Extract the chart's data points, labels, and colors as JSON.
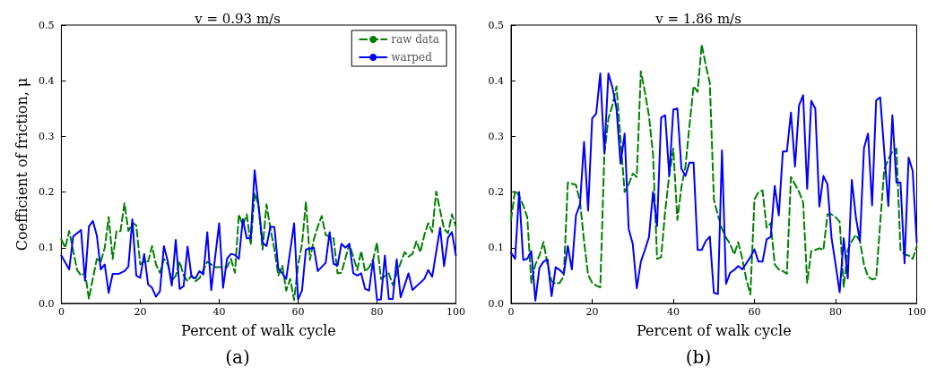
{
  "chart_data": [
    {
      "type": "line",
      "title": "v = 0.93 m/s",
      "xlabel": "Percent of walk cycle",
      "ylabel": "Coefficient of friction, μ",
      "annotations": [
        "(a)"
      ],
      "xlim": [
        0,
        100
      ],
      "ylim": [
        0,
        0.5
      ],
      "xticks": [
        0,
        20,
        40,
        60,
        80,
        100
      ],
      "yticks": [
        {
          "value": 0,
          "label": "0.0"
        },
        {
          "value": 0.1,
          "label": "0.1"
        },
        {
          "value": 0.2,
          "label": "0.2"
        },
        {
          "value": 0.3,
          "label": "0.3"
        },
        {
          "value": 0.4,
          "label": "0.4"
        },
        {
          "value": 0.5,
          "label": "0.5"
        }
      ],
      "grid": false,
      "legend": "top right",
      "marker": "none",
      "series": [
        {
          "name": "raw data",
          "color": "#008000",
          "line_style": "dashed",
          "x": [
            0,
            1,
            2,
            4,
            5,
            6,
            7,
            8,
            9,
            10,
            11,
            12,
            13,
            14,
            15,
            16,
            17,
            18,
            19,
            20,
            21,
            22,
            23,
            24,
            25,
            26,
            27,
            28,
            29,
            30,
            31,
            32,
            33,
            34,
            35,
            36,
            37,
            38,
            39,
            40,
            41,
            42,
            43,
            44,
            45,
            46,
            47,
            48,
            49,
            50,
            51,
            52,
            53,
            54,
            55,
            56,
            57,
            58,
            59,
            60,
            61,
            62,
            63,
            64,
            65,
            66,
            67,
            69,
            70,
            71,
            73,
            75,
            76,
            77,
            78,
            79,
            80,
            81,
            83,
            84,
            85,
            87,
            88,
            89,
            90,
            91,
            92,
            93,
            94,
            95,
            96,
            97,
            98,
            99,
            100
          ],
          "values": [
            0.115,
            0.1,
            0.13,
            0.06,
            0.05,
            0.055,
            0.008,
            0.045,
            0.08,
            0.075,
            0.1,
            0.155,
            0.08,
            0.13,
            0.13,
            0.18,
            0.13,
            0.145,
            0.14,
            0.07,
            0.075,
            0.075,
            0.103,
            0.07,
            0.055,
            0.08,
            0.07,
            0.04,
            0.05,
            0.075,
            0.05,
            0.04,
            0.05,
            0.04,
            0.045,
            0.06,
            0.075,
            0.07,
            0.065,
            0.065,
            0.065,
            0.065,
            0.08,
            0.055,
            0.16,
            0.14,
            0.16,
            0.105,
            0.198,
            0.176,
            0.097,
            0.178,
            0.134,
            0.097,
            0.05,
            0.068,
            0.023,
            0.044,
            0.006,
            0.068,
            0.107,
            0.183,
            0.078,
            0.115,
            0.138,
            0.157,
            0.123,
            0.117,
            0.054,
            0.055,
            0.107,
            0.06,
            0.094,
            0.057,
            0.065,
            0.078,
            0.109,
            0.044,
            0.054,
            0.033,
            0.054,
            0.092,
            0.084,
            0.089,
            0.112,
            0.092,
            0.123,
            0.144,
            0.128,
            0.201,
            0.167,
            0.134,
            0.126,
            0.16,
            0.138
          ]
        },
        {
          "name": "warped",
          "color": "#0000ff",
          "line_style": "solid",
          "x": [
            0,
            2,
            3,
            5,
            6,
            7,
            8,
            9,
            10,
            11,
            12,
            13,
            14.5,
            16,
            17,
            18,
            19,
            20,
            21,
            22,
            23,
            24,
            25,
            26,
            27,
            28,
            29,
            30,
            31,
            32,
            33,
            34,
            35,
            36,
            37,
            38,
            40,
            41,
            42,
            43,
            44,
            45,
            46,
            47,
            48,
            49,
            51,
            52,
            53,
            54,
            55,
            56,
            57,
            59,
            60,
            61,
            62,
            64,
            65,
            67,
            68,
            69,
            70,
            71,
            72,
            73,
            74,
            75,
            76,
            77,
            78,
            79,
            80,
            81,
            82,
            83,
            84,
            85,
            86,
            88,
            89,
            92,
            93,
            94,
            96,
            97,
            98,
            99,
            100
          ],
          "values": [
            0.086,
            0.061,
            0.12,
            0.132,
            0.041,
            0.138,
            0.148,
            0.122,
            0.061,
            0.07,
            0.019,
            0.053,
            0.053,
            0.058,
            0.066,
            0.151,
            0.05,
            0.046,
            0.089,
            0.034,
            0.028,
            0.012,
            0.022,
            0.103,
            0.075,
            0.032,
            0.114,
            0.026,
            0.031,
            0.102,
            0.048,
            0.045,
            0.058,
            0.052,
            0.128,
            0.024,
            0.144,
            0.028,
            0.08,
            0.089,
            0.087,
            0.08,
            0.151,
            0.117,
            0.117,
            0.239,
            0.109,
            0.103,
            0.138,
            0.137,
            0.062,
            0.054,
            0.044,
            0.144,
            0.007,
            0.023,
            0.097,
            0.1,
            0.058,
            0.073,
            0.128,
            0.071,
            0.068,
            0.107,
            0.1,
            0.107,
            0.054,
            0.05,
            0.054,
            0.026,
            0.023,
            0.078,
            0.007,
            0.007,
            0.086,
            0.008,
            0.008,
            0.079,
            0.011,
            0.054,
            0.024,
            0.044,
            0.06,
            0.048,
            0.136,
            0.067,
            0.118,
            0.128,
            0.086
          ]
        }
      ]
    },
    {
      "type": "line",
      "title": "v = 1.86 m/s",
      "xlabel": "Percent of walk cycle",
      "annotations": [
        "(b)"
      ],
      "xlim": [
        0,
        100
      ],
      "ylim": [
        0,
        0.5
      ],
      "xticks": [
        0,
        20,
        40,
        60,
        80,
        100
      ],
      "yticks": [
        {
          "value": 0,
          "label": "0.0"
        },
        {
          "value": 0.1,
          "label": "0.1"
        },
        {
          "value": 0.2,
          "label": "0.2"
        },
        {
          "value": 0.3,
          "label": "0.3"
        },
        {
          "value": 0.4,
          "label": "0.4"
        },
        {
          "value": 0.5,
          "label": "0.5"
        }
      ],
      "grid": false,
      "marker": "none",
      "series": [
        {
          "color": "#008000",
          "line_style": "dashed",
          "x": [
            0,
            1,
            2,
            3,
            4,
            5,
            6,
            7,
            8,
            9,
            10,
            11,
            12,
            13,
            14,
            16,
            17,
            18,
            19,
            20,
            21,
            22,
            23,
            24,
            25,
            26,
            27,
            28,
            29,
            30,
            31,
            32,
            33,
            34,
            35,
            36,
            37,
            38,
            39,
            40,
            41,
            42,
            43,
            44,
            45,
            46,
            47,
            48,
            49,
            50,
            51,
            52,
            53,
            54,
            55,
            56,
            57,
            58,
            59,
            60,
            61,
            62,
            63,
            64,
            65,
            66,
            67,
            68,
            69,
            70,
            71,
            72,
            73,
            74,
            75,
            76,
            77,
            78,
            79,
            80,
            81,
            82,
            83,
            84,
            85,
            86,
            87,
            88,
            89,
            90,
            91,
            92,
            93,
            94,
            95,
            96,
            97,
            98,
            99,
            100
          ],
          "values": [
            0.15,
            0.203,
            0.193,
            0.176,
            0.155,
            0.037,
            0.07,
            0.086,
            0.11,
            0.07,
            0.04,
            0.035,
            0.037,
            0.049,
            0.217,
            0.213,
            0.183,
            0.112,
            0.051,
            0.037,
            0.032,
            0.029,
            0.267,
            0.332,
            0.356,
            0.39,
            0.294,
            0.2,
            0.214,
            0.233,
            0.227,
            0.417,
            0.38,
            0.337,
            0.267,
            0.08,
            0.083,
            0.166,
            0.23,
            0.278,
            0.15,
            0.209,
            0.246,
            0.321,
            0.39,
            0.38,
            0.465,
            0.428,
            0.396,
            0.187,
            0.158,
            0.134,
            0.118,
            0.107,
            0.088,
            0.11,
            0.08,
            0.043,
            0.016,
            0.187,
            0.2,
            0.203,
            0.136,
            0.144,
            0.07,
            0.061,
            0.058,
            0.053,
            0.227,
            0.214,
            0.2,
            0.182,
            0.037,
            0.094,
            0.096,
            0.099,
            0.096,
            0.16,
            0.16,
            0.155,
            0.147,
            0.029,
            0.096,
            0.112,
            0.123,
            0.112,
            0.07,
            0.048,
            0.043,
            0.045,
            0.144,
            0.241,
            0.259,
            0.273,
            0.278,
            0.096,
            0.088,
            0.086,
            0.08,
            0.102
          ]
        },
        {
          "color": "#0000ff",
          "line_style": "solid",
          "x": [
            0,
            1,
            2,
            3,
            4,
            5,
            6,
            7,
            8,
            9,
            10,
            11,
            12,
            13,
            14,
            15,
            16,
            17,
            18,
            19,
            20,
            21,
            22,
            23,
            24,
            25,
            26,
            27,
            28,
            29,
            30,
            31,
            32,
            33,
            34,
            35,
            36,
            37,
            38,
            39,
            40,
            41,
            42,
            43,
            44,
            45,
            46,
            47,
            48,
            49,
            50,
            51,
            52,
            53,
            54,
            55,
            56,
            57,
            58,
            59,
            60,
            61,
            62,
            63,
            64,
            65,
            66,
            67,
            68,
            69,
            70,
            71,
            72,
            73,
            74,
            75,
            76,
            77,
            78,
            79,
            80,
            81,
            82,
            83,
            84,
            85,
            86,
            87,
            88,
            89,
            90,
            91,
            93,
            94,
            95,
            96,
            97,
            98,
            99,
            100
          ],
          "values": [
            0.091,
            0.08,
            0.2,
            0.078,
            0.08,
            0.094,
            0.005,
            0.064,
            0.075,
            0.079,
            0.013,
            0.065,
            0.06,
            0.053,
            0.103,
            0.061,
            0.158,
            0.178,
            0.29,
            0.167,
            0.332,
            0.341,
            0.413,
            0.27,
            0.413,
            0.388,
            0.35,
            0.251,
            0.305,
            0.134,
            0.107,
            0.027,
            0.075,
            0.096,
            0.119,
            0.2,
            0.139,
            0.334,
            0.338,
            0.23,
            0.348,
            0.35,
            0.242,
            0.229,
            0.253,
            0.253,
            0.096,
            0.096,
            0.112,
            0.12,
            0.019,
            0.017,
            0.275,
            0.035,
            0.055,
            0.06,
            0.067,
            0.061,
            0.072,
            0.083,
            0.097,
            0.075,
            0.075,
            0.115,
            0.119,
            0.211,
            0.158,
            0.273,
            0.273,
            0.343,
            0.246,
            0.356,
            0.374,
            0.206,
            0.364,
            0.35,
            0.174,
            0.229,
            0.214,
            0.118,
            0.07,
            0.02,
            0.117,
            0.045,
            0.222,
            0.155,
            0.112,
            0.279,
            0.305,
            0.176,
            0.365,
            0.37,
            0.175,
            0.338,
            0.217,
            0.217,
            0.072,
            0.262,
            0.238,
            0.11
          ]
        }
      ]
    }
  ]
}
